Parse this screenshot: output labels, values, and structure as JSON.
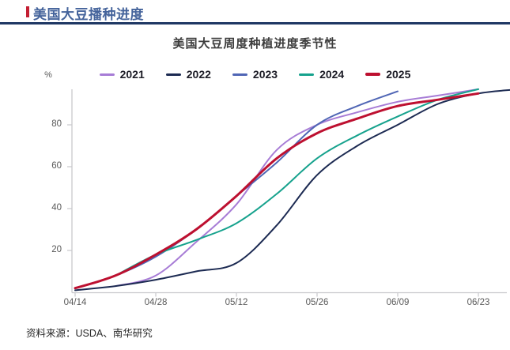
{
  "header": {
    "title": "美国大豆播种进度",
    "accent_color": "#c41f33",
    "rule_color": "#1f3864"
  },
  "footer": {
    "source_label": "资料来源：USDA、南华研究"
  },
  "chart_data": {
    "type": "line",
    "title": "美国大豆周度种植进度季节性",
    "ylabel": "%",
    "xlabel": "",
    "grid": false,
    "legend_position": "top",
    "ylim": [
      0,
      100
    ],
    "yticks": [
      20,
      40,
      60,
      80
    ],
    "x_tick_labels": [
      "04/14",
      "04/28",
      "05/12",
      "05/26",
      "06/09",
      "06/23"
    ],
    "categories": [
      "04/14",
      "04/21",
      "04/28",
      "05/05",
      "05/12",
      "05/19",
      "05/26",
      "06/02",
      "06/09",
      "06/16",
      "06/23",
      "06/30"
    ],
    "series": [
      {
        "name": "2021",
        "color": "#a77cd6",
        "width": 2,
        "values": [
          null,
          3,
          8,
          24,
          42,
          68,
          80,
          86,
          91,
          94,
          97,
          null
        ]
      },
      {
        "name": "2022",
        "color": "#1c2a52",
        "width": 2,
        "values": [
          1,
          3,
          6,
          10,
          14,
          32,
          56,
          70,
          80,
          90,
          95,
          97
        ]
      },
      {
        "name": "2023",
        "color": "#5066b5",
        "width": 2,
        "values": [
          2,
          8,
          17,
          30,
          46,
          62,
          80,
          89,
          96,
          null,
          null,
          null
        ]
      },
      {
        "name": "2024",
        "color": "#16a28d",
        "width": 2,
        "values": [
          null,
          8,
          18,
          25,
          33,
          47,
          64,
          75,
          84,
          92,
          97,
          null
        ]
      },
      {
        "name": "2025",
        "color": "#bd1030",
        "width": 3,
        "values": [
          2,
          8,
          18,
          30,
          46,
          64,
          76,
          83,
          89,
          92,
          95,
          null
        ]
      }
    ],
    "axis_color": "#c8c8cc"
  }
}
